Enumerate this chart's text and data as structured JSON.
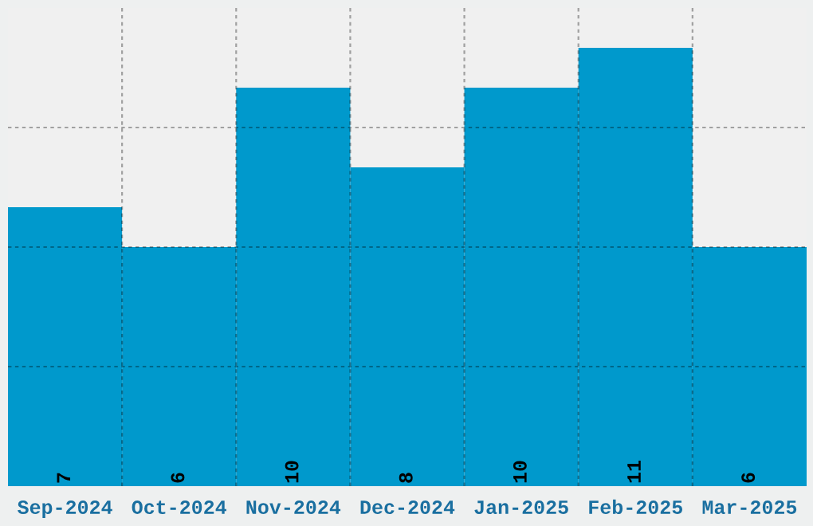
{
  "chart_data": {
    "type": "bar",
    "categories": [
      "Sep-2024",
      "Oct-2024",
      "Nov-2024",
      "Dec-2024",
      "Jan-2025",
      "Feb-2025",
      "Mar-2025"
    ],
    "values": [
      7,
      6,
      10,
      8,
      10,
      11,
      6
    ],
    "color": "#0099cc",
    "ylim": [
      0,
      12
    ],
    "yticks": [
      {
        "value": 3,
        "label": null
      },
      {
        "value": 6,
        "label": null
      },
      {
        "value": 9,
        "label": null
      }
    ],
    "tick_labels": "x",
    "grid": true,
    "data_labels": true
  }
}
